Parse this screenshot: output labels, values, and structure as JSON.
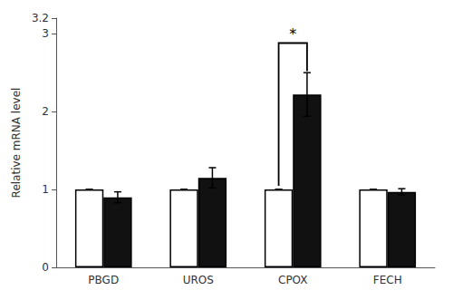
{
  "chart_data": {
    "type": "bar",
    "categories": [
      "PBGD",
      "UROS",
      "CPOX",
      "FECH"
    ],
    "series": [
      {
        "color": "#ffffff",
        "values": [
          1.0,
          1.0,
          1.0,
          1.0
        ],
        "errors": [
          0.0,
          0.0,
          0.0,
          0.0
        ]
      },
      {
        "color": "#111111",
        "values": [
          0.9,
          1.15,
          2.22,
          0.97
        ],
        "errors": [
          0.07,
          0.13,
          0.28,
          0.04
        ]
      }
    ],
    "ylabel": "Relative mRNA level",
    "ylim": [
      0,
      3.2
    ],
    "yticks": [
      0,
      1,
      2,
      3
    ],
    "grid": false,
    "annotations": [
      {
        "text": "*",
        "category": "CPOX",
        "bracket_top": 2.88,
        "bracket_right_drop": 2.52
      }
    ]
  }
}
